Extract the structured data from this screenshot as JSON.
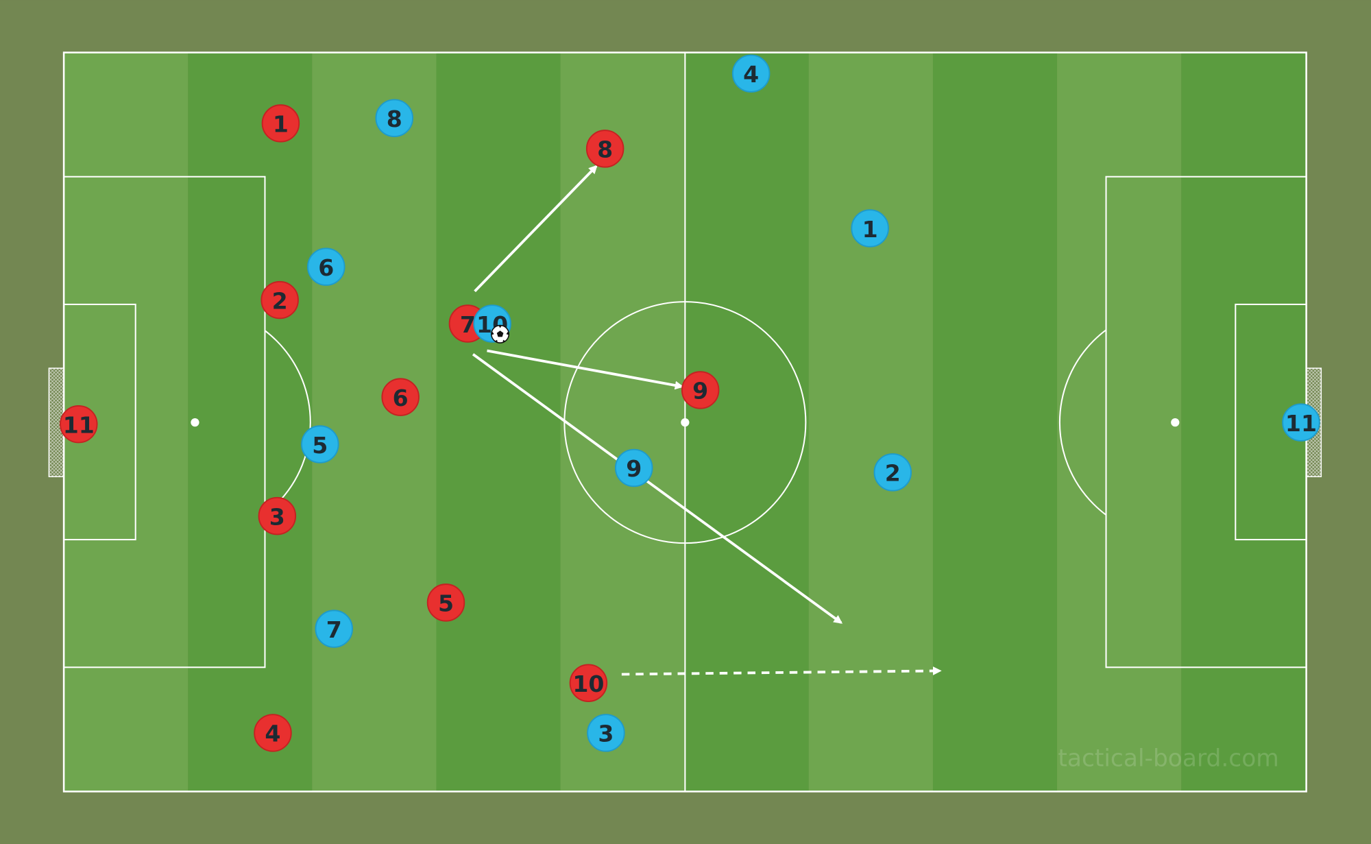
{
  "board": {
    "watermark": "tactical-board.com",
    "colors": {
      "background": "#738752",
      "stripe_light": "#6fa64f",
      "stripe_dark": "#5b9c3f",
      "lines": "#ffffff",
      "team_red": "#e8302f",
      "team_blue": "#29b6e8",
      "number_text": "#1d2a33"
    }
  },
  "teams": {
    "red": {
      "players": [
        "1",
        "2",
        "3",
        "4",
        "5",
        "6",
        "7",
        "8",
        "9",
        "10",
        "11"
      ]
    },
    "blue": {
      "players": [
        "1",
        "2",
        "3",
        "4",
        "5",
        "6",
        "7",
        "8",
        "9",
        "10",
        "11"
      ]
    }
  },
  "ball": {
    "icon": "soccer-ball-icon",
    "holder": "blue 10"
  },
  "arrows": [
    {
      "type": "pass",
      "style": "solid",
      "to": "red 8"
    },
    {
      "type": "pass",
      "style": "solid",
      "to": "red 9"
    },
    {
      "type": "pass",
      "style": "solid",
      "to": "space"
    },
    {
      "type": "run",
      "style": "dashed",
      "from": "red 10"
    }
  ]
}
